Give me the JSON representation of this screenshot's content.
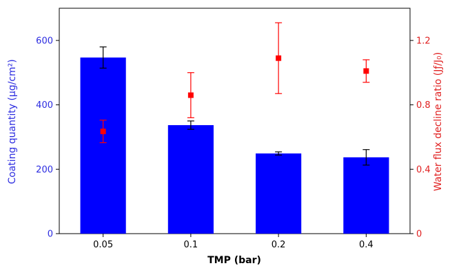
{
  "chart_data": {
    "type": "bar",
    "xlabel": "TMP (bar)",
    "categories": [
      "0.05",
      "0.1",
      "0.2",
      "0.4"
    ],
    "series": [
      {
        "name": "Coating quantity",
        "type": "bar",
        "axis": "left",
        "color": "#0000FF",
        "values": [
          547,
          337,
          249,
          237
        ],
        "errors": [
          33,
          13,
          5,
          24
        ]
      },
      {
        "name": "Water flux decline ratio",
        "type": "scatter",
        "axis": "right",
        "color": "#FF0000",
        "values": [
          0.635,
          0.86,
          1.09,
          1.01
        ],
        "errors": [
          0.07,
          0.14,
          0.22,
          0.07
        ]
      }
    ],
    "ylabel_left": "Coating quantity (μg/cm²)",
    "ylabel_right": "Water flux decline ratio (Jƒ/J₀)",
    "ylim_left": [
      0,
      700
    ],
    "ylim_right": [
      0,
      1.4
    ],
    "yticks_left": [
      "0",
      "200",
      "400",
      "600"
    ],
    "yticks_right": [
      "0",
      "0.4",
      "0.8",
      "1.2"
    ],
    "left_axis_color": "#2B2BE0",
    "right_axis_color": "#E02020",
    "grid": false
  }
}
